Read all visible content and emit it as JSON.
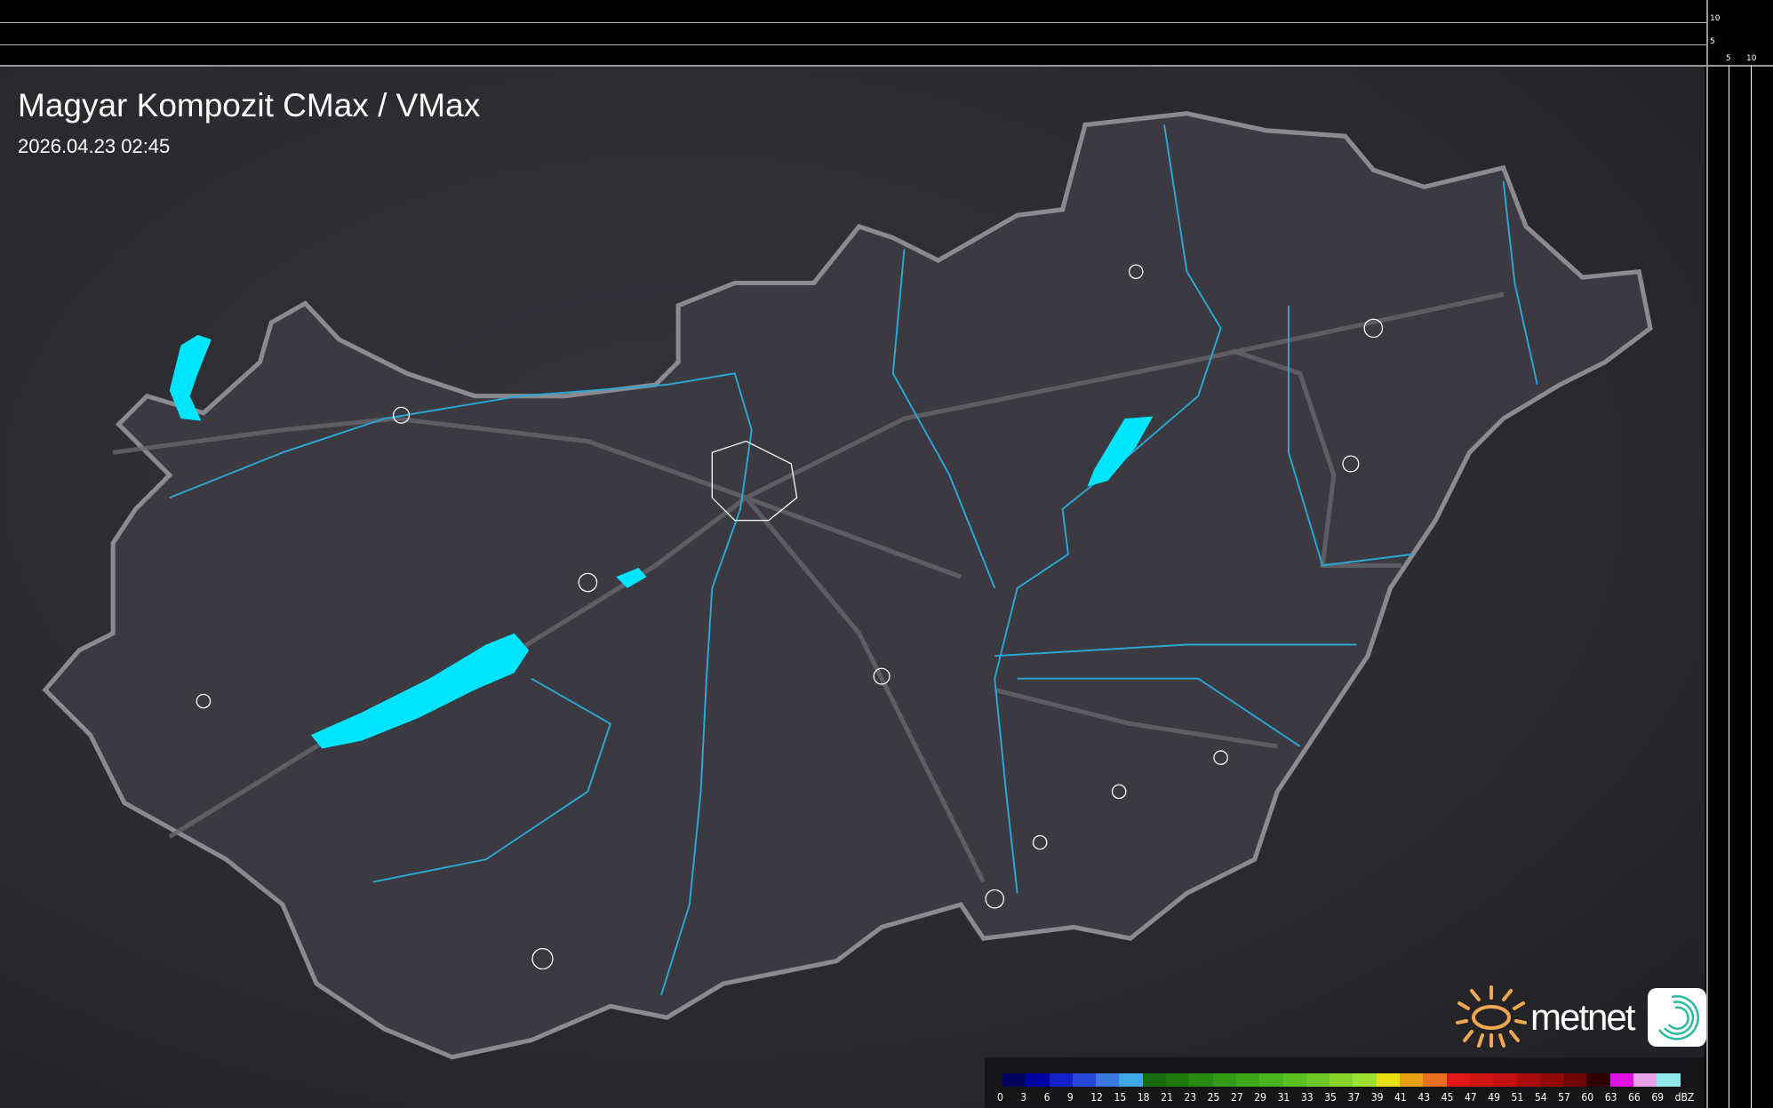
{
  "header": {
    "title": "Magyar Kompozit CMax / VMax",
    "timestamp": "2026.04.23 02:45"
  },
  "scale_ticks": {
    "vertical": [
      "10",
      "5"
    ],
    "horizontal": [
      "5",
      "10"
    ]
  },
  "legend": {
    "unit": "dBZ",
    "labels": [
      "0",
      "3",
      "6",
      "9",
      "12",
      "15",
      "18",
      "21",
      "23",
      "25",
      "27",
      "29",
      "31",
      "33",
      "35",
      "37",
      "39",
      "41",
      "43",
      "45",
      "47",
      "49",
      "51",
      "54",
      "57",
      "60",
      "63",
      "66",
      "69"
    ],
    "colors": [
      "#03035e",
      "#0202a0",
      "#1420c8",
      "#2848d8",
      "#3a78e0",
      "#40a8e8",
      "#186a10",
      "#1e7a0c",
      "#288a10",
      "#329a14",
      "#3ca818",
      "#4ab41c",
      "#5ac020",
      "#70c828",
      "#88d02c",
      "#9ee030",
      "#e8e010",
      "#e8a010",
      "#e87020",
      "#e01818",
      "#d01414",
      "#c01010",
      "#a80c0c",
      "#900808",
      "#700404",
      "#300000",
      "#e010e0",
      "#e8a0e8",
      "#90e8e8"
    ]
  },
  "logo": {
    "text": "metnet",
    "sun_color": "#f0a850",
    "icon_color": "#2ab8a0"
  },
  "colors": {
    "water": "#00e5ff",
    "river": "#2aa8d8",
    "border": "#8a8a90",
    "roads": "#6a6a70"
  }
}
